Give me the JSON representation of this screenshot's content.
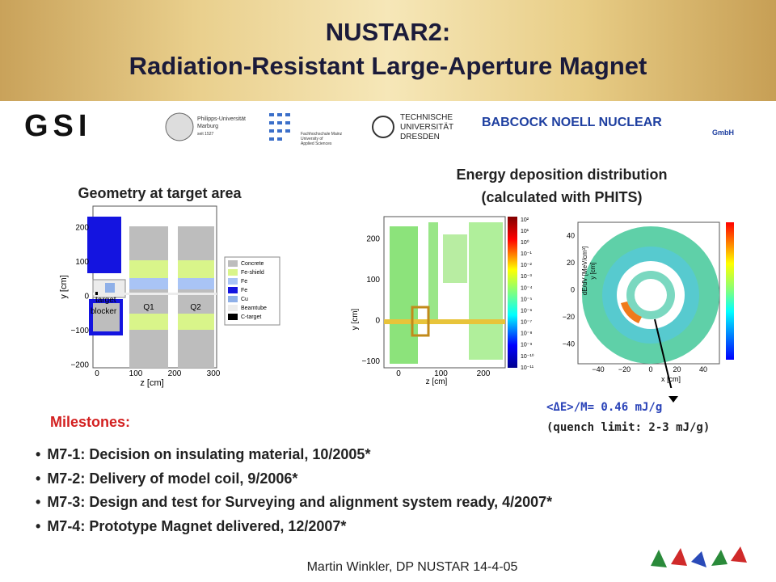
{
  "header": {
    "title": [
      "NUSTAR2:",
      "Radiation-Resistant Large-Aperture Magnet"
    ]
  },
  "logos": {
    "gsi": "GSI",
    "marburg": [
      "Philipps-Universität",
      "Marburg",
      "seit 1527"
    ],
    "mainz": [
      "Fachhochschule Mainz",
      "University of",
      "Applied Sciences"
    ],
    "dresden": [
      "TECHNISCHE",
      "UNIVERSITÄT",
      "DRESDEN"
    ],
    "babcock": [
      "BABCOCK NOELL NUCLEAR",
      "GmbH"
    ]
  },
  "geometry": {
    "heading": "Geometry at target area",
    "y_label": "y [cm]",
    "x_label": "z [cm]",
    "yticks": [
      "200",
      "100",
      "0",
      "−100",
      "−200"
    ],
    "xticks": [
      "0",
      "100",
      "200",
      "300"
    ],
    "labels": {
      "target": "target",
      "blocker": "blocker",
      "q1": "Q1",
      "q2": "Q2"
    },
    "legend": [
      {
        "name": "Concrete",
        "color": "#bdbdbd"
      },
      {
        "name": "Fe-shield",
        "color": "#d9f58a"
      },
      {
        "name": "Fe",
        "color": "#a9c4f5"
      },
      {
        "name": "Fe",
        "color": "#1414e0"
      },
      {
        "name": "Cu",
        "color": "#8fb0e8"
      },
      {
        "name": "Beamtube",
        "color": "#ececec"
      },
      {
        "name": "C-target",
        "color": "#000000"
      }
    ]
  },
  "deposition": {
    "heading": [
      "Energy deposition distribution",
      "(calculated with PHITS)"
    ],
    "side": {
      "y_label": "y [cm]",
      "x_label": "z [cm]",
      "yticks": [
        "200",
        "100",
        "0",
        "−100"
      ],
      "xticks": [
        "0",
        "100",
        "200"
      ],
      "colorbar": [
        "10²",
        "10¹",
        "10⁰",
        "10⁻¹",
        "10⁻²",
        "10⁻³",
        "10⁻⁴",
        "10⁻⁵",
        "10⁻⁶",
        "10⁻⁷",
        "10⁻⁸",
        "10⁻⁹",
        "10⁻¹⁰",
        "10⁻¹¹"
      ]
    },
    "cross": {
      "y_label": "y [cm]",
      "y2_label": "dE/dV [MeV/cm³]",
      "x_label": "x [cm]",
      "yticks": [
        "40",
        "20",
        "0",
        "−20",
        "−40"
      ],
      "xticks": [
        "−40",
        "−20",
        "0",
        "20",
        "40"
      ]
    },
    "annotation": [
      "<ΔE>/M= 0.46 mJ/g",
      "(quench limit: 2-3 mJ/g)"
    ]
  },
  "milestones": {
    "heading": "Milestones:",
    "items": [
      "M7-1: Decision on insulating material, 10/2005*",
      "M7-2: Delivery of model coil, 9/2006*",
      "M7-3: Design and test for Surveying and alignment system ready, 4/2007*",
      "M7-4: Prototype Magnet delivered, 12/2007*"
    ]
  },
  "footer": "Martin Winkler, DP NUSTAR 14-4-05"
}
